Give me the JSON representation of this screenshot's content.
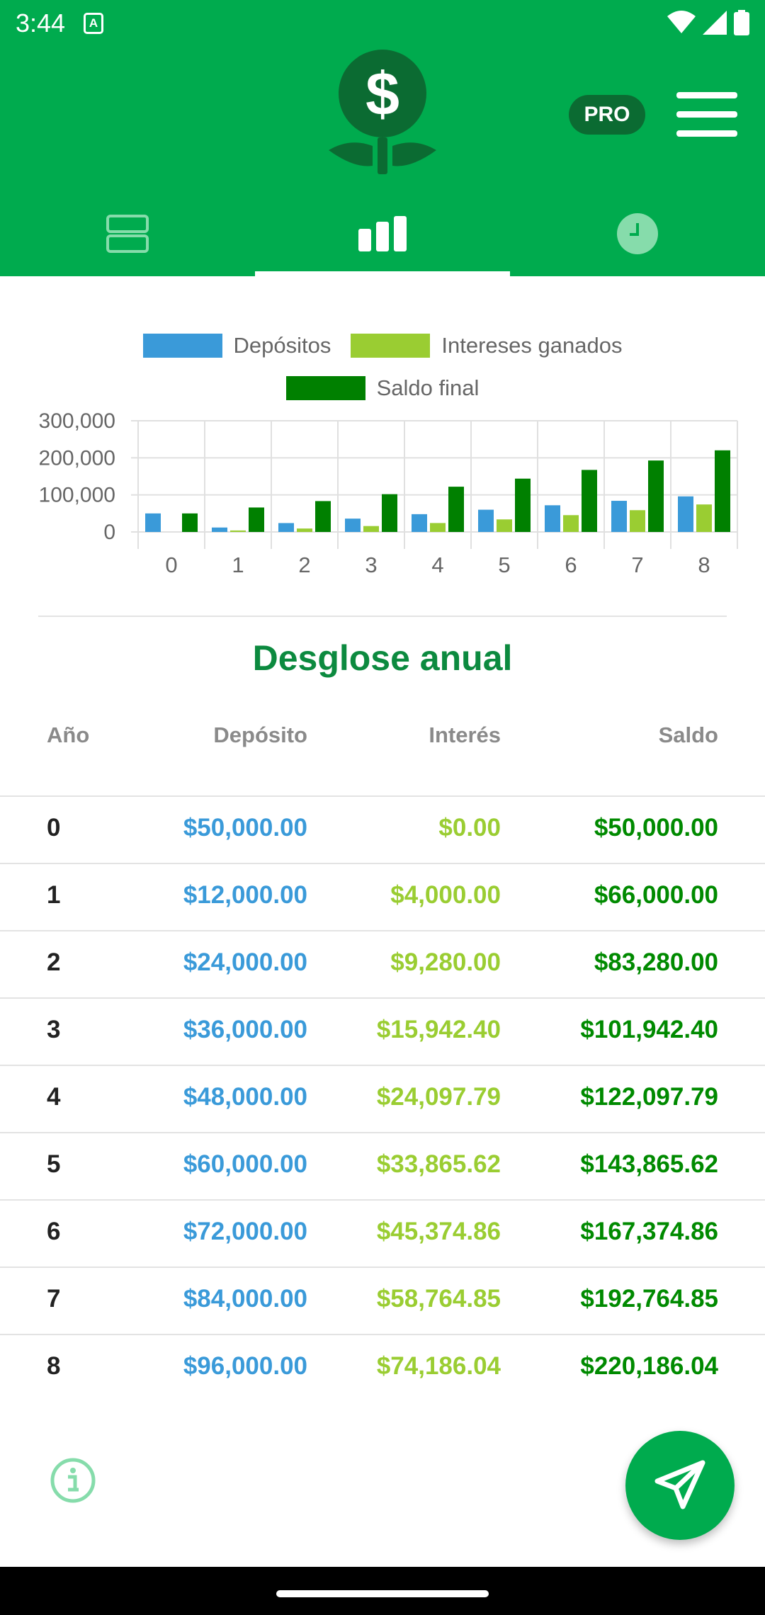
{
  "status_bar": {
    "time": "3:44",
    "notif": "A"
  },
  "header": {
    "logo_symbol": "$",
    "pro_label": "PRO",
    "colors": {
      "primary": "#00ab4e",
      "dark": "#0b6b32"
    },
    "tabs": [
      {
        "icon": "list-icon",
        "active": false
      },
      {
        "icon": "bar-chart-icon",
        "active": true
      },
      {
        "icon": "clock-icon",
        "active": false
      }
    ]
  },
  "chart_data": {
    "type": "bar",
    "categories": [
      "0",
      "1",
      "2",
      "3",
      "4",
      "5",
      "6",
      "7",
      "8"
    ],
    "series": [
      {
        "name": "Depósitos",
        "color": "#3a9ad9",
        "values": [
          50000,
          12000,
          24000,
          36000,
          48000,
          60000,
          72000,
          84000,
          96000
        ]
      },
      {
        "name": "Intereses ganados",
        "color": "#9acd32",
        "values": [
          0,
          4000,
          9280,
          15942.4,
          24097.79,
          33865.62,
          45374.86,
          58764.85,
          74186.04
        ]
      },
      {
        "name": "Saldo final",
        "color": "#008000",
        "values": [
          50000,
          66000,
          83280,
          101942.4,
          122097.79,
          143865.62,
          167374.86,
          192764.85,
          220186.04
        ]
      }
    ],
    "y_ticks": [
      "300,000",
      "200,000",
      "100,000",
      "0"
    ],
    "ylim": [
      0,
      300000
    ],
    "grid": true,
    "legend_position": "top"
  },
  "breakdown": {
    "title": "Desglose anual",
    "headers": {
      "year": "Año",
      "deposit": "Depósito",
      "interest": "Interés",
      "balance": "Saldo"
    },
    "rows": [
      {
        "year": "0",
        "deposit": "$50,000.00",
        "interest": "$0.00",
        "balance": "$50,000.00"
      },
      {
        "year": "1",
        "deposit": "$12,000.00",
        "interest": "$4,000.00",
        "balance": "$66,000.00"
      },
      {
        "year": "2",
        "deposit": "$24,000.00",
        "interest": "$9,280.00",
        "balance": "$83,280.00"
      },
      {
        "year": "3",
        "deposit": "$36,000.00",
        "interest": "$15,942.40",
        "balance": "$101,942.40"
      },
      {
        "year": "4",
        "deposit": "$48,000.00",
        "interest": "$24,097.79",
        "balance": "$122,097.79"
      },
      {
        "year": "5",
        "deposit": "$60,000.00",
        "interest": "$33,865.62",
        "balance": "$143,865.62"
      },
      {
        "year": "6",
        "deposit": "$72,000.00",
        "interest": "$45,374.86",
        "balance": "$167,374.86"
      },
      {
        "year": "7",
        "deposit": "$84,000.00",
        "interest": "$58,764.85",
        "balance": "$192,764.85"
      },
      {
        "year": "8",
        "deposit": "$96,000.00",
        "interest": "$74,186.04",
        "balance": "$220,186.04"
      }
    ]
  },
  "footer": {
    "info_icon": "info-icon",
    "fab_icon": "send-icon"
  }
}
